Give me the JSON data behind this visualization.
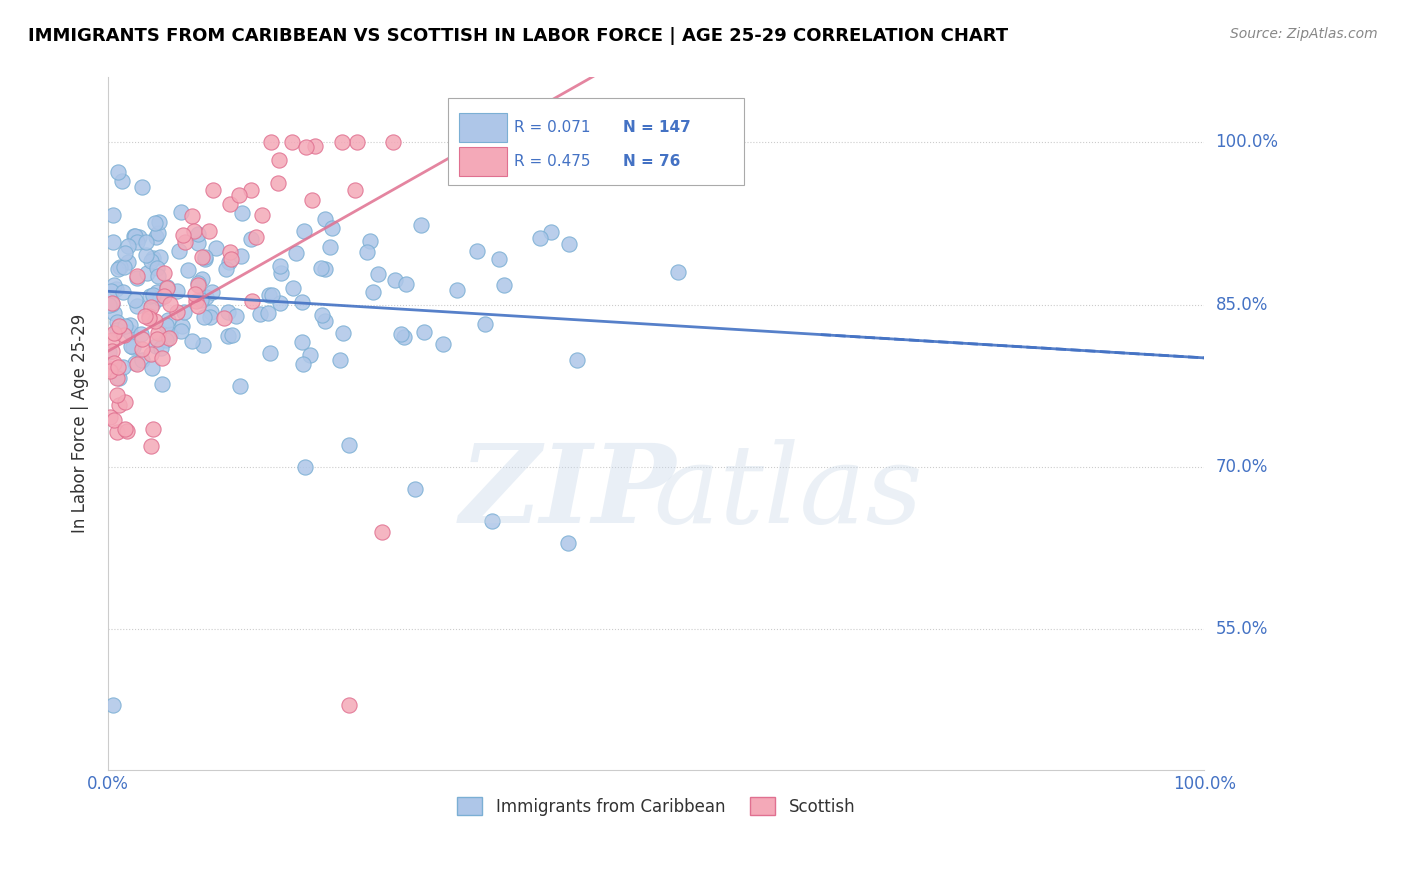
{
  "title": "IMMIGRANTS FROM CARIBBEAN VS SCOTTISH IN LABOR FORCE | AGE 25-29 CORRELATION CHART",
  "source": "Source: ZipAtlas.com",
  "ylabel": "In Labor Force | Age 25-29",
  "xmin": 0.0,
  "xmax": 1.0,
  "ymin": 0.42,
  "ymax": 1.06,
  "blue_R": 0.071,
  "blue_N": 147,
  "pink_R": 0.475,
  "pink_N": 76,
  "blue_color": "#aec6e8",
  "blue_edge": "#7bafd4",
  "pink_color": "#f4a9b8",
  "pink_edge": "#e07090",
  "blue_line_color": "#4472c4",
  "pink_line_color": "#e07090",
  "grid_color": "#cccccc",
  "title_color": "#000000",
  "source_color": "#888888",
  "label_color": "#4472c4",
  "legend_label1": "Immigrants from Caribbean",
  "legend_label2": "Scottish",
  "ytick_vals": [
    0.55,
    0.7,
    0.85,
    1.0
  ],
  "ytick_labels": [
    "55.0%",
    "70.0%",
    "85.0%",
    "100.0%"
  ]
}
